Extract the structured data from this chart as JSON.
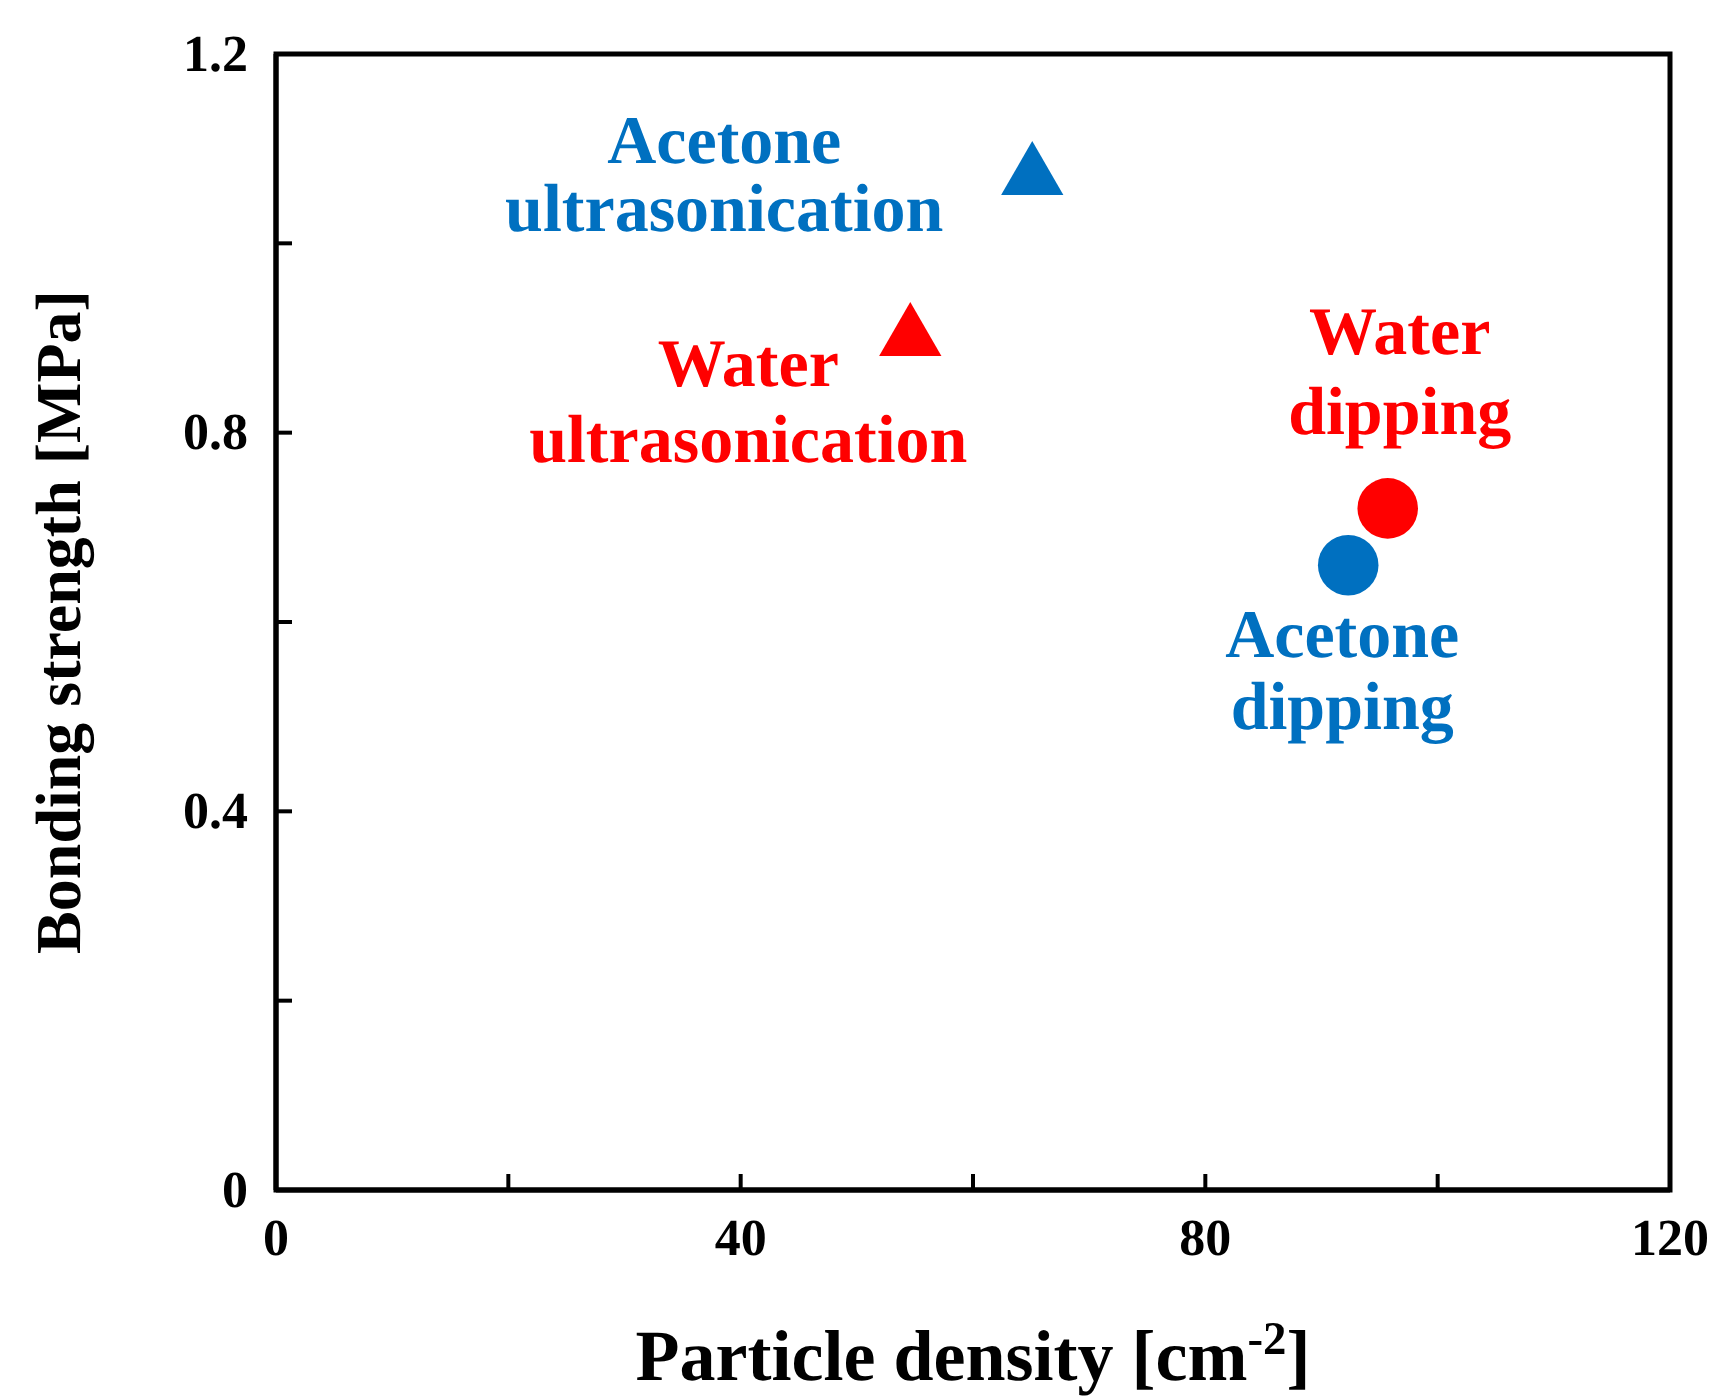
{
  "chart_data": {
    "type": "scatter",
    "xlabel": "Particle density [cm$^{-2}$]",
    "ylabel": "Bonding strength [MPa]",
    "xlim": [
      0,
      120
    ],
    "xticks": [
      0,
      {
        "value": 20,
        "label": null
      },
      40,
      {
        "value": 60,
        "label": null
      },
      80,
      {
        "value": 100,
        "label": null
      },
      120
    ],
    "ylim": [
      0,
      1.2
    ],
    "yticks": [
      0,
      {
        "value": 0.2,
        "label": null
      },
      0.4,
      {
        "value": 0.6,
        "label": null
      },
      0.8,
      {
        "value": 1.0,
        "label": null
      },
      1.2
    ],
    "grid": false,
    "legend": false,
    "series": [
      {
        "name": "Acetone ultrasonication",
        "color": "#0070c0",
        "marker": "triangle",
        "x": [
          65.1
        ],
        "values": [
          1.07
        ]
      },
      {
        "name": "Water ultrasonication",
        "color": "#ff0000",
        "marker": "triangle",
        "x": [
          54.6
        ],
        "values": [
          0.9
        ]
      },
      {
        "name": "Water dipping",
        "color": "#ff0000",
        "marker": "circle",
        "x": [
          95.7
        ],
        "values": [
          0.72
        ]
      },
      {
        "name": "Acetone dipping",
        "color": "#0070c0",
        "marker": "circle",
        "x": [
          92.3
        ],
        "values": [
          0.66
        ]
      }
    ]
  }
}
